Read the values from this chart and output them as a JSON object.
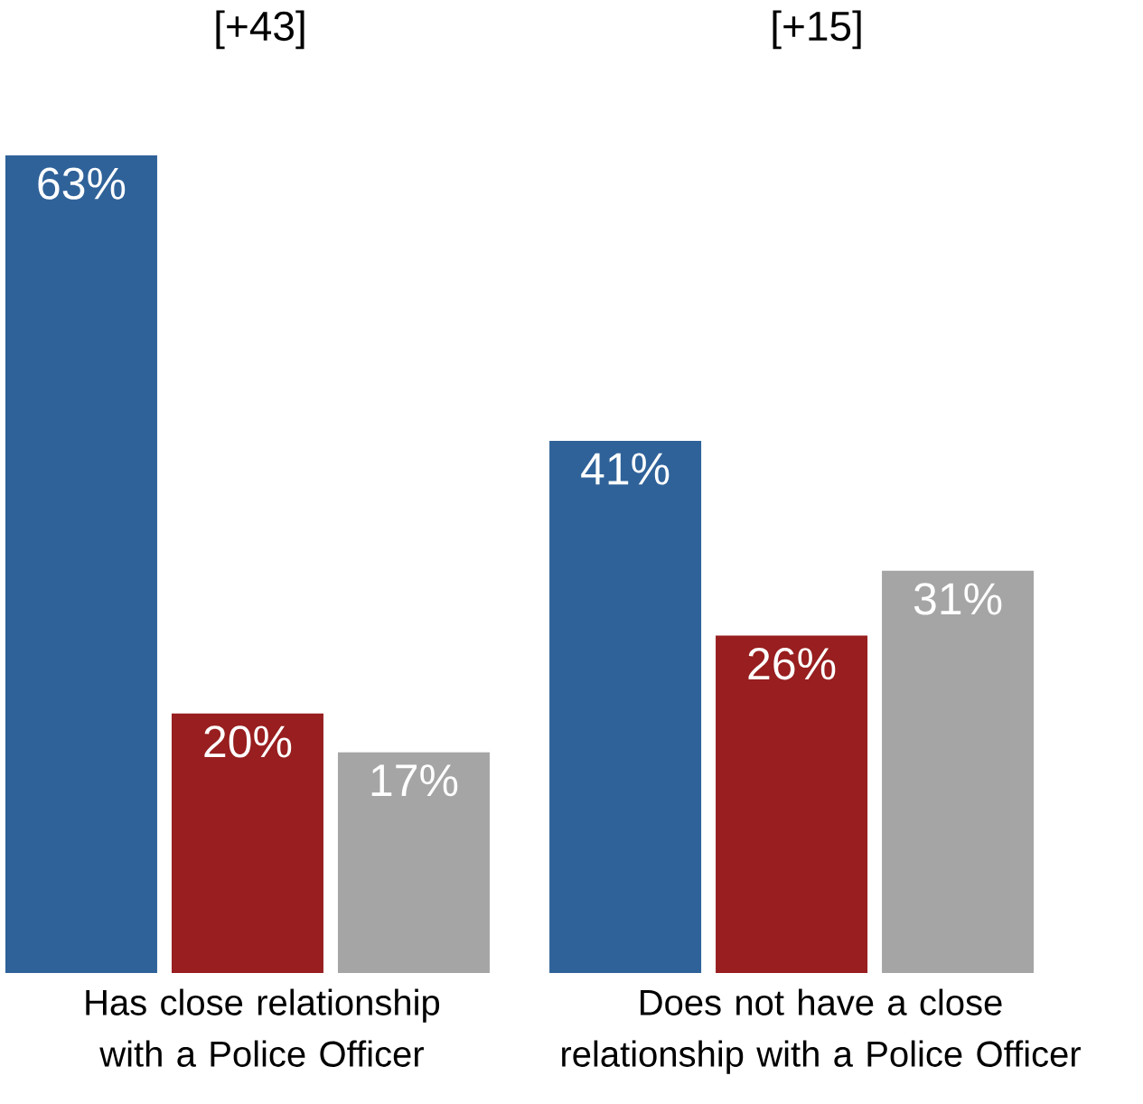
{
  "chart_data": {
    "type": "bar",
    "categories": [
      "Has close relationship with a Police Officer",
      "Does not have a close relationship with a Police Officer"
    ],
    "series": [
      {
        "color": "#2f6299",
        "values": [
          63,
          41
        ],
        "value_labels": [
          "63%",
          "41%"
        ]
      },
      {
        "color": "#981e1f",
        "values": [
          20,
          26
        ],
        "value_labels": [
          "20%",
          "26%"
        ]
      },
      {
        "color": "#a5a5a5",
        "values": [
          17,
          31
        ],
        "value_labels": [
          "17%",
          "31%"
        ]
      }
    ],
    "annotations": [
      "[+43]",
      "[+15]"
    ]
  }
}
